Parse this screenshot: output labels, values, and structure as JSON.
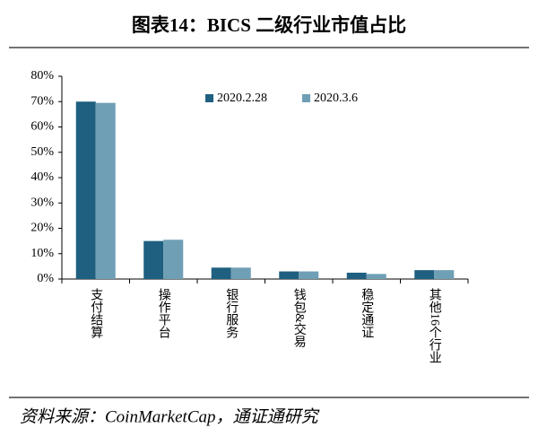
{
  "chart_data": {
    "type": "bar",
    "title": "图表14：BICS 二级行业市值占比",
    "categories": [
      "支付结算",
      "操作平台",
      "银行服务",
      "钱包&交易",
      "稳定通证",
      "其他16个行业"
    ],
    "series": [
      {
        "name": "2020.2.28",
        "color": "#1f5f80",
        "values": [
          70,
          15,
          4.5,
          3,
          2.5,
          3.5
        ]
      },
      {
        "name": "2020.3.6",
        "color": "#6f9fb5",
        "values": [
          69.5,
          15.5,
          4.5,
          3,
          2,
          3.5
        ]
      }
    ],
    "ylim": [
      0,
      80
    ],
    "yticks": [
      {
        "value": 0,
        "label": "0%"
      },
      {
        "value": 10,
        "label": "10%"
      },
      {
        "value": 20,
        "label": "20%"
      },
      {
        "value": 30,
        "label": "30%"
      },
      {
        "value": 40,
        "label": "40%"
      },
      {
        "value": 50,
        "label": "50%"
      },
      {
        "value": 60,
        "label": "60%"
      },
      {
        "value": 70,
        "label": "70%"
      },
      {
        "value": 80,
        "label": "80%"
      }
    ],
    "grid": false,
    "source": "资料来源：CoinMarketCap，通证通研究"
  }
}
